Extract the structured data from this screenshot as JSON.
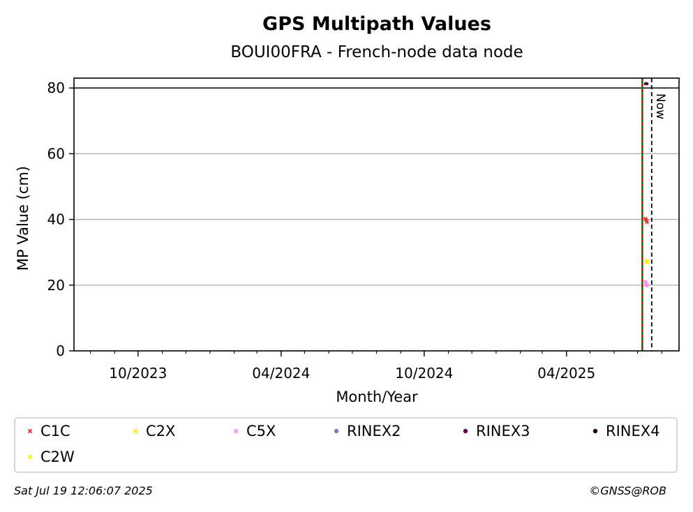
{
  "chart_data": {
    "type": "scatter",
    "title": "GPS Multipath Values",
    "subtitle": "BOUI00FRA - French-node data node",
    "xlabel": "Month/Year",
    "ylabel": "MP Value (cm)",
    "x_range": [
      "2023-07-11",
      "2025-08-23"
    ],
    "ylim": [
      0,
      83
    ],
    "y_ticks": [
      0,
      20,
      40,
      60,
      80
    ],
    "x_ticks": [
      {
        "date": "2023-10-01",
        "label": "10/2023"
      },
      {
        "date": "2024-04-01",
        "label": "04/2024"
      },
      {
        "date": "2024-10-01",
        "label": "10/2024"
      },
      {
        "date": "2025-04-01",
        "label": "04/2025"
      }
    ],
    "minor_x_ticks": [
      "2023-08-01",
      "2023-09-01",
      "2023-11-01",
      "2023-12-01",
      "2024-01-01",
      "2024-02-01",
      "2024-03-01",
      "2024-05-01",
      "2024-06-01",
      "2024-07-01",
      "2024-08-01",
      "2024-09-01",
      "2024-11-01",
      "2024-12-01",
      "2025-01-01",
      "2025-02-01",
      "2025-03-01",
      "2025-05-01",
      "2025-06-01",
      "2025-07-01",
      "2025-08-01"
    ],
    "grid": "y-major",
    "limit_line": {
      "y": 80,
      "color": "#000000"
    },
    "vertical_lines": [
      {
        "date": "2025-07-07",
        "colors": [
          "#008000",
          "#cc0000"
        ],
        "style": "green-red-dashed"
      },
      {
        "date": "2025-07-19",
        "color": "#000000",
        "style": "dashed",
        "label": "Now"
      }
    ],
    "series": [
      {
        "name": "C1C",
        "marker": "x",
        "color": "#ee3333",
        "points": [
          {
            "x": "2025-07-11",
            "y": 40.2
          },
          {
            "x": "2025-07-12",
            "y": 39.8
          },
          {
            "x": "2025-07-13",
            "y": 39.2
          }
        ]
      },
      {
        "name": "C2X",
        "marker": "x",
        "color": "#ffee00",
        "points": [
          {
            "x": "2025-07-12",
            "y": 27.4
          },
          {
            "x": "2025-07-13",
            "y": 27.0
          }
        ]
      },
      {
        "name": "C5X",
        "marker": "x",
        "color": "#ff88ee",
        "points": [
          {
            "x": "2025-07-11",
            "y": 21.0
          },
          {
            "x": "2025-07-12",
            "y": 20.4
          },
          {
            "x": "2025-07-13",
            "y": 19.9
          }
        ]
      },
      {
        "name": "RINEX2",
        "marker": "o",
        "color": "#8877bb",
        "points": []
      },
      {
        "name": "RINEX3",
        "marker": "o",
        "color": "#660055",
        "points": [
          {
            "x": "2025-07-11",
            "y": 81.3
          },
          {
            "x": "2025-07-12",
            "y": 81.3
          },
          {
            "x": "2025-07-13",
            "y": 81.3
          }
        ]
      },
      {
        "name": "RINEX4",
        "marker": "o",
        "color": "#220011",
        "points": []
      },
      {
        "name": "C2W",
        "marker": "x",
        "color": "#ffee00",
        "points": []
      }
    ],
    "legend_position": "bottom"
  },
  "footer": {
    "timestamp": "Sat Jul 19 12:06:07 2025",
    "credit": "©GNSS@ROB"
  }
}
